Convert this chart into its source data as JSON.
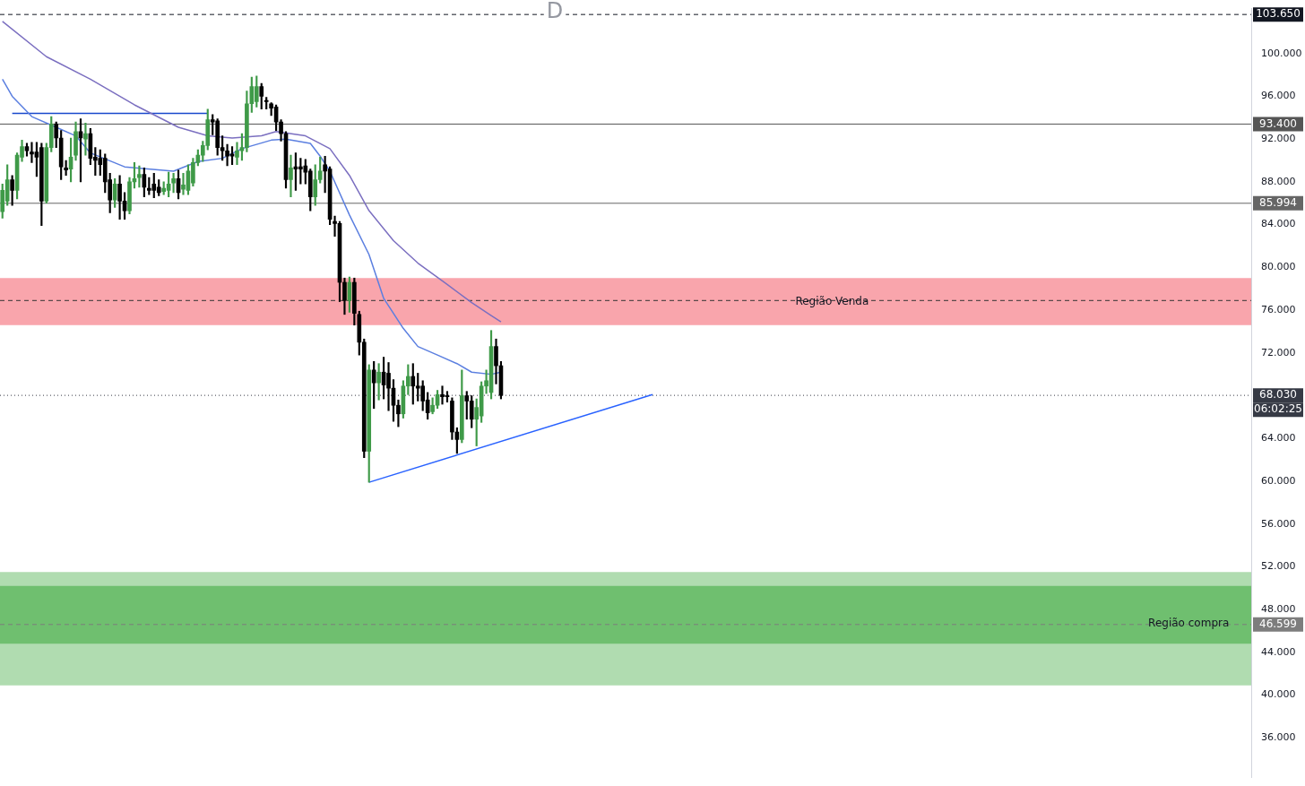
{
  "chart_data": {
    "type": "candlestick",
    "title": "D",
    "categories": [
      null,
      null,
      null,
      null,
      null,
      null,
      null,
      null,
      null,
      null,
      null,
      null,
      null,
      null,
      null,
      null,
      null,
      null,
      null,
      null,
      null,
      null,
      null,
      null,
      null,
      null,
      null,
      null,
      null,
      null,
      null,
      null,
      null,
      null,
      null,
      null,
      null,
      null,
      null,
      null,
      null,
      null,
      null,
      null,
      null,
      null,
      null,
      null,
      null,
      null,
      null,
      null,
      null,
      null,
      null,
      null,
      null,
      null,
      null,
      null,
      null,
      null,
      null,
      null,
      null,
      null,
      null,
      null,
      null,
      null,
      null,
      null,
      null,
      null,
      null,
      null,
      null,
      null,
      null,
      null,
      null,
      null,
      null,
      null,
      null,
      null,
      null,
      null,
      null,
      null,
      null,
      null,
      null,
      null,
      null,
      null,
      null,
      null,
      null,
      null,
      null,
      null,
      null,
      null,
      null,
      null,
      null,
      null,
      null,
      null,
      null,
      null,
      null,
      null,
      null,
      null,
      null,
      null,
      null,
      null,
      null,
      null,
      null,
      null,
      null,
      null,
      null,
      null,
      null,
      null,
      null,
      null,
      null,
      null,
      null,
      null,
      null,
      null,
      null,
      null,
      null,
      null,
      null,
      null,
      null,
      null,
      null,
      null,
      null,
      null,
      null,
      null,
      null,
      null,
      null,
      null,
      null,
      null,
      null,
      null,
      null,
      null,
      null,
      null,
      null,
      null,
      null,
      null,
      null,
      null,
      null,
      null,
      null,
      null,
      null,
      null,
      null,
      null,
      null,
      null,
      null,
      null,
      null,
      null,
      null,
      null,
      null,
      null,
      null,
      null,
      null,
      null,
      null,
      null,
      null,
      null,
      null,
      null,
      null,
      null,
      null,
      null,
      null,
      null,
      null,
      null,
      null,
      null,
      null,
      null,
      null,
      null,
      null,
      null,
      null,
      null,
      null,
      null,
      null,
      null,
      null,
      null,
      null,
      null,
      null,
      null,
      null,
      null,
      null,
      null,
      null,
      null,
      null,
      null,
      null,
      null,
      null,
      null,
      null,
      null,
      null,
      null,
      null,
      null,
      null,
      null,
      null,
      null,
      null,
      null,
      null,
      null,
      null,
      null,
      null,
      null
    ],
    "ohlc": [
      [
        85.2,
        87.8,
        84.6,
        87.2
      ],
      [
        86.2,
        89.6,
        85.8,
        88.2
      ],
      [
        88.2,
        88.6,
        85.8,
        87.2
      ],
      [
        87.2,
        90.7,
        86.4,
        90.5
      ],
      [
        90.3,
        91.9,
        89.9,
        91.3
      ],
      [
        91.3,
        91.6,
        90.4,
        90.9
      ],
      [
        90.8,
        91.7,
        89.8,
        90.6
      ],
      [
        90.8,
        91.7,
        88.5,
        90.3
      ],
      [
        91.2,
        91.6,
        83.9,
        86.2
      ],
      [
        86.2,
        91.6,
        86.0,
        91.2
      ],
      [
        91.2,
        94.1,
        90.8,
        93.4
      ],
      [
        93.4,
        93.6,
        91.2,
        92.1
      ],
      [
        92.1,
        92.8,
        88.2,
        89.4
      ],
      [
        89.3,
        90.0,
        88.6,
        89.1
      ],
      [
        89.2,
        92.1,
        88.0,
        90.3
      ],
      [
        90.5,
        93.6,
        90.0,
        92.7
      ],
      [
        92.7,
        93.9,
        88.0,
        92.1
      ],
      [
        92.0,
        93.5,
        90.5,
        92.5
      ],
      [
        92.5,
        93.0,
        89.6,
        90.2
      ],
      [
        90.3,
        91.2,
        88.6,
        90.0
      ],
      [
        90.2,
        91.0,
        88.6,
        89.6
      ],
      [
        90.2,
        90.6,
        87.0,
        88.0
      ],
      [
        88.2,
        88.8,
        85.1,
        86.3
      ],
      [
        86.3,
        88.3,
        85.6,
        87.8
      ],
      [
        87.8,
        88.6,
        84.5,
        86.2
      ],
      [
        86.2,
        87.0,
        84.5,
        85.3
      ],
      [
        85.3,
        88.4,
        85.0,
        88.0
      ],
      [
        88.0,
        89.8,
        87.4,
        88.3
      ],
      [
        88.4,
        89.5,
        87.5,
        88.7
      ],
      [
        88.7,
        89.3,
        86.6,
        87.5
      ],
      [
        87.4,
        88.4,
        86.8,
        87.2
      ],
      [
        87.8,
        88.8,
        86.5,
        87.2
      ],
      [
        87.5,
        88.2,
        86.7,
        87.0
      ],
      [
        87.1,
        88.0,
        86.8,
        87.4
      ],
      [
        87.2,
        88.9,
        86.6,
        87.8
      ],
      [
        87.9,
        88.8,
        87.0,
        88.3
      ],
      [
        88.3,
        89.1,
        86.4,
        87.0
      ],
      [
        87.3,
        88.8,
        86.8,
        87.7
      ],
      [
        87.2,
        89.6,
        86.8,
        89.0
      ],
      [
        87.9,
        90.2,
        87.6,
        89.8
      ],
      [
        89.8,
        91.0,
        89.5,
        90.5
      ],
      [
        90.5,
        91.8,
        89.9,
        91.4
      ],
      [
        91.4,
        94.8,
        91.0,
        93.8
      ],
      [
        93.8,
        94.3,
        92.4,
        93.6
      ],
      [
        93.7,
        93.9,
        90.5,
        91.2
      ],
      [
        91.2,
        92.3,
        90.0,
        90.9
      ],
      [
        90.9,
        91.5,
        89.5,
        90.4
      ],
      [
        90.6,
        91.3,
        89.6,
        90.4
      ],
      [
        90.3,
        91.7,
        89.6,
        90.9
      ],
      [
        90.9,
        92.5,
        90.0,
        91.2
      ],
      [
        91.2,
        96.5,
        90.8,
        95.3
      ],
      [
        95.3,
        97.8,
        94.5,
        96.9
      ],
      [
        95.5,
        97.9,
        95.0,
        96.9
      ],
      [
        96.9,
        97.2,
        94.8,
        96.0
      ],
      [
        95.6,
        95.9,
        94.8,
        95.5
      ],
      [
        95.3,
        95.4,
        94.2,
        94.9
      ],
      [
        95.0,
        95.2,
        92.8,
        93.6
      ],
      [
        93.6,
        93.8,
        91.8,
        92.5
      ],
      [
        92.5,
        92.7,
        87.4,
        88.2
      ],
      [
        88.2,
        90.5,
        86.6,
        89.3
      ],
      [
        89.4,
        90.7,
        87.2,
        89.2
      ],
      [
        89.4,
        90.2,
        87.8,
        89.2
      ],
      [
        89.5,
        90.1,
        87.8,
        88.9
      ],
      [
        89.0,
        89.2,
        85.3,
        86.6
      ],
      [
        86.6,
        89.6,
        85.8,
        88.2
      ],
      [
        88.2,
        90.3,
        87.9,
        89.0
      ],
      [
        89.6,
        90.4,
        87.0,
        89.0
      ],
      [
        89.2,
        89.4,
        84.0,
        84.5
      ],
      [
        84.3,
        84.8,
        82.9,
        84.1
      ],
      [
        84.1,
        84.3,
        76.8,
        78.6
      ],
      [
        78.6,
        79.0,
        75.6,
        76.9
      ],
      [
        76.9,
        79.1,
        75.8,
        78.6
      ],
      [
        78.6,
        79.0,
        74.6,
        75.7
      ],
      [
        75.6,
        75.9,
        71.8,
        73.0
      ],
      [
        73.0,
        73.3,
        62.2,
        62.8
      ],
      [
        62.8,
        70.9,
        59.9,
        70.4
      ],
      [
        70.4,
        71.2,
        66.8,
        69.2
      ],
      [
        69.2,
        71.0,
        67.6,
        70.2
      ],
      [
        70.2,
        71.6,
        67.7,
        69.0
      ],
      [
        70.1,
        71.1,
        66.6,
        68.7
      ],
      [
        68.7,
        69.5,
        65.6,
        67.1
      ],
      [
        67.1,
        67.6,
        65.1,
        66.3
      ],
      [
        66.3,
        69.4,
        65.9,
        68.9
      ],
      [
        68.9,
        70.9,
        68.1,
        69.8
      ],
      [
        69.8,
        71.0,
        67.2,
        68.9
      ],
      [
        68.9,
        70.1,
        67.5,
        68.7
      ],
      [
        68.9,
        69.4,
        66.6,
        67.5
      ],
      [
        67.6,
        68.3,
        65.8,
        66.4
      ],
      [
        66.5,
        67.8,
        66.3,
        67.1
      ],
      [
        67.1,
        68.5,
        66.8,
        68.1
      ],
      [
        68.1,
        68.9,
        67.2,
        67.9
      ],
      [
        68.0,
        68.4,
        67.4,
        67.9
      ],
      [
        67.5,
        67.8,
        63.9,
        64.6
      ],
      [
        64.6,
        65.0,
        62.6,
        63.9
      ],
      [
        63.9,
        70.4,
        63.6,
        68.0
      ],
      [
        68.0,
        68.4,
        65.8,
        67.5
      ],
      [
        67.5,
        68.0,
        65.0,
        65.8
      ],
      [
        65.8,
        67.7,
        63.3,
        66.9
      ],
      [
        66.1,
        69.3,
        65.5,
        68.9
      ],
      [
        68.9,
        70.4,
        68.2,
        69.4
      ],
      [
        68.3,
        74.1,
        67.7,
        72.6
      ],
      [
        72.6,
        73.3,
        69.1,
        70.8
      ],
      [
        70.8,
        71.2,
        67.7,
        68.03
      ],
      null,
      null,
      null,
      null,
      null,
      null,
      null,
      null,
      null,
      null,
      null,
      null,
      null,
      null,
      null,
      null,
      null,
      null,
      null,
      null,
      null,
      null,
      null,
      null,
      null,
      null,
      null,
      null,
      null,
      null,
      null,
      null,
      null,
      null,
      null,
      null,
      null,
      null,
      null,
      null,
      null,
      null,
      null,
      null,
      null,
      null,
      null,
      null,
      null,
      null,
      null,
      null,
      null,
      null,
      null,
      null,
      null,
      null,
      null,
      null,
      null,
      null,
      null,
      null,
      null,
      null,
      null,
      null,
      null,
      null,
      null,
      null,
      null,
      null,
      null,
      null,
      null,
      null,
      null,
      null,
      null,
      null,
      null,
      null,
      null,
      null,
      null,
      null,
      null,
      null,
      null,
      null,
      null,
      null,
      null,
      null,
      null,
      null,
      null,
      null,
      null,
      null,
      null,
      null,
      null,
      null,
      null,
      null,
      null,
      null,
      null,
      null,
      null,
      null,
      null,
      null,
      null,
      null,
      null,
      null,
      null,
      null,
      null,
      null,
      null,
      null,
      null,
      null,
      null,
      null,
      null,
      null,
      null,
      null,
      null,
      null,
      null,
      null,
      null,
      null,
      null,
      null,
      null,
      null,
      null,
      null,
      null,
      null,
      null,
      null,
      null,
      null,
      null
    ],
    "series": [
      {
        "type": "line",
        "color": "#5b7fe0",
        "values": [
          97.6,
          null,
          96.0,
          null,
          null,
          null,
          94.1,
          null,
          null,
          null,
          null,
          93.1,
          null,
          null,
          null,
          92.3,
          null,
          null,
          90.7,
          null,
          null,
          null,
          null,
          null,
          null,
          89.4,
          null,
          null,
          null,
          null,
          null,
          null,
          null,
          null,
          null,
          89.0,
          null,
          null,
          null,
          null,
          89.9,
          null,
          null,
          null,
          null,
          90.2,
          null,
          null,
          null,
          91.1,
          null,
          null,
          null,
          null,
          null,
          91.9,
          null,
          null,
          92.0,
          null,
          null,
          null,
          null,
          91.6,
          null,
          90.4,
          null,
          89.0,
          null,
          null,
          null,
          84.9,
          null,
          null,
          null,
          81.2,
          null,
          null,
          77.1,
          null,
          null,
          null,
          74.3,
          null,
          null,
          72.6,
          null,
          null,
          null,
          71.8,
          null,
          null,
          null,
          71.0,
          null,
          null,
          70.2,
          null,
          null,
          null,
          70.0,
          null,
          70.2,
          null,
          null,
          null,
          null,
          null,
          null,
          null,
          null,
          null,
          null,
          null,
          null,
          null,
          null,
          null,
          null,
          null,
          null,
          null,
          null,
          null,
          null,
          null,
          null,
          null,
          null,
          null,
          null,
          null,
          null,
          null,
          null,
          null,
          null,
          null,
          null,
          null,
          null,
          null,
          null,
          null,
          null,
          null,
          null,
          null,
          null,
          null,
          null,
          null,
          null,
          null,
          null,
          null,
          null,
          null,
          null,
          null,
          null,
          null,
          null,
          null,
          null,
          null,
          null,
          null,
          null,
          null,
          null,
          null,
          null,
          null,
          null,
          null,
          null,
          null,
          null,
          null,
          null,
          null,
          null,
          null,
          null,
          null,
          null,
          null,
          null,
          null,
          null,
          null,
          null,
          null,
          null,
          null,
          null,
          null,
          null,
          null,
          null,
          null,
          null,
          null,
          null,
          null,
          null,
          null,
          null,
          null,
          null,
          null,
          null,
          null,
          null,
          null,
          null,
          null,
          null,
          null,
          null,
          null,
          null,
          null,
          null,
          null,
          null,
          null,
          null,
          null,
          null,
          null,
          null,
          null,
          null,
          null,
          null,
          null,
          null,
          null,
          null,
          null,
          null,
          null,
          null,
          null,
          null,
          null,
          null,
          null,
          null,
          null,
          null,
          null,
          null,
          null
        ]
      },
      {
        "type": "line",
        "color": "#7b6fc0",
        "values": [
          103.0,
          null,
          null,
          null,
          null,
          null,
          null,
          null,
          null,
          99.7,
          null,
          null,
          null,
          null,
          null,
          null,
          null,
          null,
          97.6,
          null,
          null,
          null,
          null,
          null,
          null,
          null,
          null,
          95.2,
          null,
          null,
          null,
          null,
          null,
          null,
          null,
          null,
          93.1,
          null,
          null,
          null,
          null,
          null,
          92.3,
          null,
          null,
          null,
          null,
          92.1,
          null,
          null,
          null,
          null,
          null,
          92.3,
          null,
          null,
          92.7,
          null,
          null,
          null,
          null,
          null,
          92.3,
          null,
          null,
          null,
          null,
          91.1,
          null,
          null,
          null,
          88.6,
          null,
          null,
          null,
          85.3,
          null,
          null,
          null,
          null,
          82.5,
          null,
          null,
          null,
          null,
          80.4,
          null,
          null,
          null,
          null,
          null,
          78.4,
          null,
          null,
          null,
          null,
          76.7,
          null,
          null,
          null,
          75.5,
          null,
          74.9,
          null,
          null,
          null,
          null,
          null,
          null,
          null,
          null,
          null,
          null,
          null,
          null,
          null,
          null,
          null,
          null,
          null,
          null,
          null,
          null,
          null,
          null,
          null,
          null,
          null,
          null,
          null,
          null,
          null,
          null,
          null,
          null,
          null,
          null,
          null,
          null,
          null,
          null,
          null,
          null,
          null,
          null,
          null,
          null,
          null,
          null,
          null,
          null,
          null,
          null,
          null,
          null,
          null,
          null,
          null,
          null,
          null,
          null,
          null,
          null,
          null,
          null,
          null,
          null,
          null,
          null,
          null,
          null,
          null,
          null,
          null,
          null,
          null,
          null,
          null,
          null,
          null,
          null,
          null,
          null,
          null,
          null,
          null,
          null,
          null,
          null,
          null,
          null,
          null,
          null,
          null,
          null,
          null,
          null,
          null,
          null,
          null,
          null,
          null,
          null,
          null,
          null,
          null,
          null,
          null,
          null,
          null,
          null,
          null,
          null,
          null,
          null,
          null,
          null,
          null,
          null,
          null,
          null,
          null,
          null,
          null,
          null,
          null,
          null,
          null,
          null,
          null,
          null,
          null,
          null,
          null,
          null,
          null,
          null,
          null,
          null,
          null,
          null,
          null,
          null,
          null,
          null,
          null,
          null,
          null,
          null,
          null,
          null,
          null,
          null,
          null,
          null,
          null
        ]
      },
      {
        "type": "line",
        "color": "#1848cc",
        "values": [
          null,
          null,
          94.4,
          null,
          null,
          null,
          null,
          null,
          null,
          null,
          null,
          null,
          null,
          null,
          null,
          null,
          null,
          null,
          null,
          null,
          null,
          null,
          null,
          null,
          null,
          null,
          null,
          null,
          null,
          null,
          null,
          null,
          null,
          null,
          null,
          null,
          null,
          null,
          null,
          null,
          null,
          null,
          94.4,
          null,
          null,
          null,
          null,
          null,
          null,
          null,
          null,
          null,
          null,
          null,
          null,
          null,
          null,
          null,
          null,
          null,
          null,
          null,
          null,
          null,
          null,
          null,
          null,
          null,
          null,
          null,
          null,
          null,
          null,
          null,
          null,
          null,
          null,
          null,
          null,
          null,
          null,
          null,
          null,
          null,
          null,
          null,
          null,
          null,
          null,
          null,
          null,
          null,
          null,
          null,
          null,
          null,
          null,
          null,
          null,
          null,
          null,
          null,
          null,
          null,
          null,
          null,
          null,
          null,
          null,
          null,
          null,
          null,
          null,
          null,
          null,
          null,
          null,
          null,
          null,
          null,
          null,
          null,
          null,
          null,
          null,
          null,
          null,
          null,
          null,
          null,
          null,
          null,
          null,
          null,
          null,
          null,
          null,
          null,
          null,
          null,
          null,
          null,
          null,
          null,
          null,
          null,
          null,
          null,
          null,
          null,
          null,
          null,
          null,
          null,
          null,
          null,
          null,
          null,
          null,
          null,
          null,
          null,
          null,
          null,
          null,
          null,
          null,
          null,
          null,
          null,
          null,
          null,
          null,
          null,
          null,
          null,
          null,
          null,
          null,
          null,
          null,
          null,
          null,
          null,
          null,
          null,
          null,
          null,
          null,
          null,
          null,
          null,
          null,
          null,
          null,
          null,
          null,
          null,
          null,
          null,
          null,
          null,
          null,
          null,
          null,
          null,
          null,
          null,
          null,
          null,
          null,
          null,
          null,
          null,
          null,
          null,
          null,
          null,
          null,
          null,
          null,
          null,
          null,
          null,
          null,
          null,
          null,
          null,
          null,
          null,
          null,
          null,
          null,
          null,
          null,
          null,
          null,
          null,
          null,
          null,
          null,
          null,
          null,
          null,
          null,
          null,
          null,
          null,
          null,
          null,
          null,
          null,
          null,
          null,
          null,
          null
        ]
      },
      {
        "type": "line",
        "color": "#2962ff",
        "values": [
          null,
          null,
          null,
          null,
          null,
          null,
          null,
          null,
          null,
          null,
          null,
          null,
          null,
          null,
          null,
          null,
          null,
          null,
          null,
          null,
          null,
          null,
          null,
          null,
          null,
          null,
          null,
          null,
          null,
          null,
          null,
          null,
          null,
          null,
          null,
          null,
          null,
          null,
          null,
          null,
          null,
          null,
          null,
          null,
          null,
          null,
          null,
          null,
          null,
          null,
          null,
          null,
          null,
          null,
          null,
          null,
          null,
          null,
          null,
          null,
          null,
          null,
          null,
          null,
          null,
          null,
          null,
          null,
          null,
          null,
          null,
          null,
          null,
          null,
          null,
          59.9,
          null,
          null,
          null,
          null,
          null,
          null,
          null,
          null,
          null,
          null,
          null,
          null,
          null,
          null,
          null,
          null,
          null,
          null,
          null,
          null,
          null,
          null,
          null,
          null,
          null,
          null,
          null,
          null,
          null,
          null,
          null,
          null,
          null,
          null,
          null,
          null,
          null,
          null,
          null,
          null,
          null,
          null,
          null,
          null,
          null,
          null,
          null,
          null,
          null,
          null,
          null,
          null,
          null,
          null,
          null,
          null,
          null,
          68.1,
          null,
          null,
          null,
          null,
          null,
          null,
          null,
          null,
          null,
          null,
          null,
          null,
          null,
          null,
          null,
          null,
          null,
          null,
          null,
          null,
          null,
          null,
          null,
          null,
          null,
          null,
          null,
          null,
          null,
          null,
          null,
          null,
          null,
          null,
          null,
          null,
          null,
          null,
          null,
          null,
          null,
          null,
          null,
          null,
          null,
          null,
          null,
          null,
          null,
          null,
          null,
          null,
          null,
          null,
          null,
          null,
          null,
          null,
          null,
          null,
          null,
          null,
          null,
          null,
          null,
          null,
          null,
          null,
          null,
          null,
          null,
          null,
          null,
          null,
          null,
          null,
          null,
          null,
          null,
          null,
          null,
          null,
          null,
          null,
          null,
          null,
          null,
          null,
          null,
          null,
          null,
          null,
          null,
          null,
          null,
          null,
          null,
          null,
          null,
          null,
          null,
          null,
          null,
          null,
          null,
          null,
          null,
          null,
          null,
          null,
          null,
          null,
          null,
          null,
          null,
          null,
          null,
          null,
          null,
          null,
          null,
          null
        ]
      }
    ],
    "marker": "none",
    "ylim": [
      32.3,
      104.2
    ],
    "yticks": [
      {
        "value": 36,
        "label": "36.000"
      },
      {
        "value": 40,
        "label": "40.000"
      },
      {
        "value": 44,
        "label": "44.000"
      },
      {
        "value": 48,
        "label": "48.000"
      },
      {
        "value": 52,
        "label": "52.000"
      },
      {
        "value": 56,
        "label": "56.000"
      },
      {
        "value": 60,
        "label": "60.000"
      },
      {
        "value": 64,
        "label": "64.000"
      },
      {
        "value": 68,
        "label": null
      },
      {
        "value": 72,
        "label": "72.000"
      },
      {
        "value": 76,
        "label": "76.000"
      },
      {
        "value": 80,
        "label": "80.000"
      },
      {
        "value": 84,
        "label": "84.000"
      },
      {
        "value": 88,
        "label": "88.000"
      },
      {
        "value": 92,
        "label": "92.000"
      },
      {
        "value": 96,
        "label": "96.000"
      },
      {
        "value": 100,
        "label": "100.000"
      }
    ],
    "bands": [
      {
        "axis": "y",
        "from": 74.6,
        "to": 79.0,
        "label": "Região Venda",
        "color": "#f9a5ac"
      },
      {
        "axis": "y",
        "from": 40.9,
        "to": 51.5,
        "color": "#b0dcb0"
      },
      {
        "axis": "y",
        "from": 44.8,
        "to": 50.2,
        "label": "Região compra",
        "color": "#6fbf6f"
      }
    ],
    "ref_lines": [
      {
        "axis": "y",
        "value": 93.4,
        "label": "93.400",
        "color": "#555555",
        "line_style": "solid"
      },
      {
        "axis": "y",
        "value": 85.994,
        "label": "85.994",
        "color": "#666666",
        "line_style": "solid"
      },
      {
        "axis": "y",
        "value": 68.03,
        "label": "68.030",
        "color": "#363a45",
        "line_style": "dotted"
      },
      {
        "axis": "y",
        "value": 103.65,
        "label": "103.650",
        "color": "#131722",
        "line_style": "dashed"
      },
      {
        "axis": "y",
        "value": 76.9,
        "color": "#333333",
        "line_style": "dashed"
      },
      {
        "axis": "y",
        "value": 46.599,
        "label": "46.599",
        "color": "#7d7d7d",
        "line_style": "dashed"
      }
    ],
    "annotations": [
      "06:02:25"
    ],
    "grid": false,
    "legend": false
  }
}
